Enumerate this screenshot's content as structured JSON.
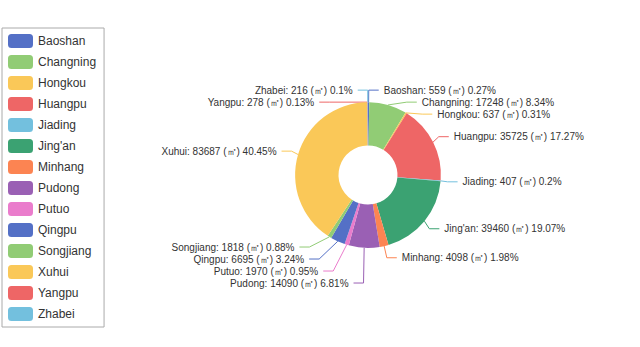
{
  "chart_data": {
    "type": "pie",
    "categories": [
      "Baoshan",
      "Changning",
      "Hongkou",
      "Huangpu",
      "Jiading",
      "Jing'an",
      "Minhang",
      "Pudong",
      "Putuo",
      "Qingpu",
      "Songjiang",
      "Xuhui",
      "Yangpu",
      "Zhabei"
    ],
    "values": [
      559,
      17248,
      637,
      35725,
      407,
      39460,
      4098,
      14090,
      1970,
      6695,
      1818,
      83687,
      278,
      216
    ],
    "value_labels": [
      "Baoshan: 559 (㎡) 0.27%",
      "Changning: 17248 (㎡) 8.34%",
      "Hongkou: 637 (㎡) 0.31%",
      "Huangpu: 35725 (㎡) 17.27%",
      "Jiading: 407 (㎡) 0.2%",
      "Jing'an: 39460 (㎡) 19.07%",
      "Minhang: 4098 (㎡) 1.98%",
      "Pudong: 14090 (㎡) 6.81%",
      "Putuo: 1970 (㎡) 0.95%",
      "Qingpu: 6695 (㎡) 3.24%",
      "Songjiang: 1818 (㎡) 0.88%",
      "Xuhui: 83687 (㎡) 40.45%",
      "Yangpu: 278 (㎡) 0.13%",
      "Zhabei: 216 (㎡) 0.1%"
    ],
    "colors": [
      "#5470c6",
      "#91cc75",
      "#fac858",
      "#ee6666",
      "#73c0de",
      "#3ba272",
      "#fc8452",
      "#9a60b4",
      "#ea7ccc",
      "#5470c6",
      "#91cc75",
      "#fac858",
      "#ee6666",
      "#73c0de"
    ],
    "legend": "left",
    "data_labels": true
  }
}
